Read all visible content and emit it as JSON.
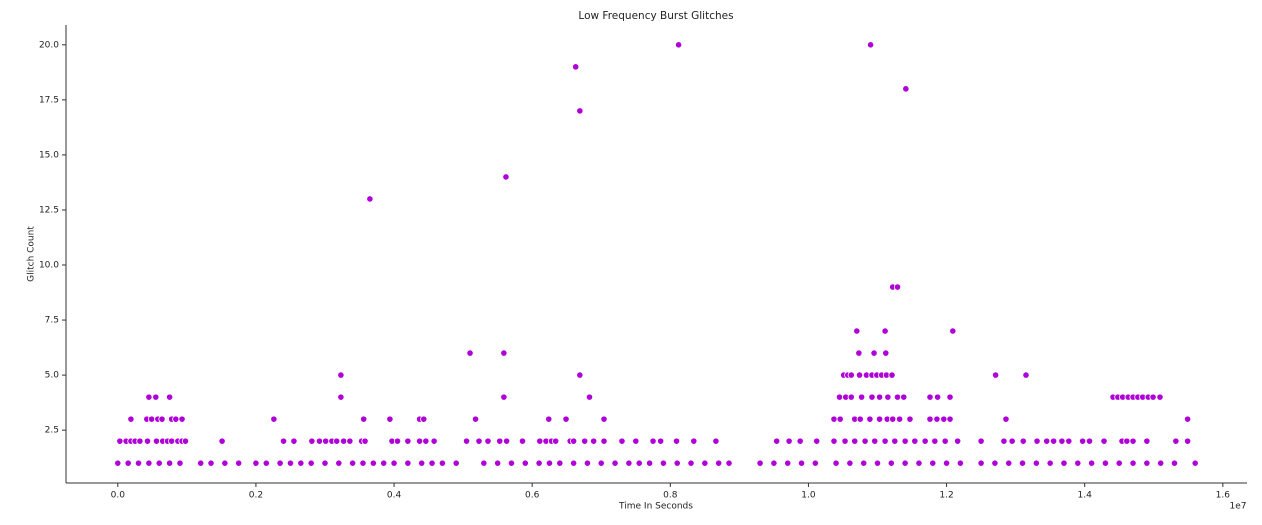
{
  "chart_data": {
    "type": "scatter",
    "title": "Low Frequency Burst Glitches",
    "xlabel": "Time In Seconds",
    "ylabel": "Glitch Count",
    "x_offset_label": "1e7",
    "color": "#b000d8",
    "grid": false,
    "xlim": [
      -0.075,
      1.635
    ],
    "ylim": [
      0.1,
      20.9
    ],
    "xticks": [
      {
        "value": 0,
        "label": "0.0"
      },
      0.2,
      0.4,
      0.6,
      0.8,
      {
        "value": 1,
        "label": "1.0"
      },
      1.2,
      1.4,
      1.6
    ],
    "yticks": [
      2.5,
      {
        "value": 5,
        "label": "5.0"
      },
      7.5,
      {
        "value": 10,
        "label": "10.0"
      },
      12.5,
      {
        "value": 15,
        "label": "15.0"
      },
      17.5,
      {
        "value": 20,
        "label": "20.0"
      }
    ],
    "x": [
      0,
      0.015,
      0.03,
      0.045,
      0.06,
      0.075,
      0.09,
      0.12,
      0.135,
      0.155,
      0.175,
      0.2,
      0.215,
      0.235,
      0.25,
      0.265,
      0.28,
      0.3,
      0.32,
      0.34,
      0.355,
      0.37,
      0.385,
      0.4,
      0.42,
      0.44,
      0.455,
      0.47,
      0.49,
      0.53,
      0.55,
      0.57,
      0.59,
      0.61,
      0.625,
      0.64,
      0.66,
      0.68,
      0.7,
      0.72,
      0.74,
      0.755,
      0.77,
      0.79,
      0.81,
      0.83,
      0.85,
      0.87,
      0.885,
      0.93,
      0.95,
      0.97,
      0.99,
      1.01,
      1.04,
      1.06,
      1.08,
      1.1,
      1.12,
      1.14,
      1.16,
      1.18,
      1.2,
      1.22,
      1.25,
      1.27,
      1.29,
      1.31,
      1.33,
      1.35,
      1.37,
      1.39,
      1.41,
      1.43,
      1.45,
      1.47,
      1.49,
      1.51,
      1.53,
      1.56,
      0.003,
      0.012,
      0.019,
      0.025,
      0.032,
      0.043,
      0.056,
      0.065,
      0.072,
      0.078,
      0.087,
      0.093,
      0.098,
      0.151,
      0.24,
      0.255,
      0.281,
      0.292,
      0.301,
      0.31,
      0.317,
      0.327,
      0.336,
      0.353,
      0.358,
      0.397,
      0.405,
      0.42,
      0.437,
      0.446,
      0.458,
      0.505,
      0.523,
      0.536,
      0.553,
      0.563,
      0.586,
      0.611,
      0.62,
      0.628,
      0.634,
      0.655,
      0.66,
      0.676,
      0.689,
      0.704,
      0.73,
      0.75,
      0.775,
      0.786,
      0.809,
      0.834,
      0.866,
      0.954,
      0.972,
      0.988,
      1.012,
      1.037,
      1.053,
      1.067,
      1.082,
      1.096,
      1.111,
      1.125,
      1.14,
      1.154,
      1.169,
      1.183,
      1.198,
      1.216,
      1.25,
      1.283,
      1.295,
      1.311,
      1.331,
      1.345,
      1.355,
      1.367,
      1.377,
      1.397,
      1.407,
      1.428,
      1.454,
      1.461,
      1.47,
      1.49,
      1.532,
      1.549,
      0.019,
      0.042,
      0.049,
      0.058,
      0.064,
      0.078,
      0.084,
      0.093,
      0.226,
      0.356,
      0.394,
      0.437,
      0.443,
      0.518,
      0.624,
      0.649,
      0.704,
      1.037,
      1.046,
      1.067,
      1.075,
      1.089,
      1.103,
      1.114,
      1.122,
      1.132,
      1.147,
      1.176,
      1.186,
      1.196,
      1.205,
      1.286,
      1.549,
      0.045,
      0.055,
      0.075,
      0.323,
      0.559,
      0.683,
      1.045,
      1.054,
      1.062,
      1.077,
      1.092,
      1.103,
      1.115,
      1.129,
      1.138,
      1.176,
      1.187,
      1.205,
      1.441,
      1.448,
      1.455,
      1.463,
      1.47,
      1.477,
      1.484,
      1.492,
      1.499,
      1.509,
      0.323,
      0.669,
      1.051,
      1.057,
      1.062,
      1.074,
      1.084,
      1.092,
      1.099,
      1.106,
      1.113,
      1.121,
      1.271,
      1.315,
      0.51,
      0.559,
      1.073,
      1.095,
      1.112,
      1.07,
      1.111,
      1.209,
      1.122,
      1.129,
      0.365,
      0.562,
      0.669,
      1.141,
      0.663,
      0.812,
      1.09
    ],
    "values": [
      1,
      1,
      1,
      1,
      1,
      1,
      1,
      1,
      1,
      1,
      1,
      1,
      1,
      1,
      1,
      1,
      1,
      1,
      1,
      1,
      1,
      1,
      1,
      1,
      1,
      1,
      1,
      1,
      1,
      1,
      1,
      1,
      1,
      1,
      1,
      1,
      1,
      1,
      1,
      1,
      1,
      1,
      1,
      1,
      1,
      1,
      1,
      1,
      1,
      1,
      1,
      1,
      1,
      1,
      1,
      1,
      1,
      1,
      1,
      1,
      1,
      1,
      1,
      1,
      1,
      1,
      1,
      1,
      1,
      1,
      1,
      1,
      1,
      1,
      1,
      1,
      1,
      1,
      1,
      1,
      2,
      2,
      2,
      2,
      2,
      2,
      2,
      2,
      2,
      2,
      2,
      2,
      2,
      2,
      2,
      2,
      2,
      2,
      2,
      2,
      2,
      2,
      2,
      2,
      2,
      2,
      2,
      2,
      2,
      2,
      2,
      2,
      2,
      2,
      2,
      2,
      2,
      2,
      2,
      2,
      2,
      2,
      2,
      2,
      2,
      2,
      2,
      2,
      2,
      2,
      2,
      2,
      2,
      2,
      2,
      2,
      2,
      2,
      2,
      2,
      2,
      2,
      2,
      2,
      2,
      2,
      2,
      2,
      2,
      2,
      2,
      2,
      2,
      2,
      2,
      2,
      2,
      2,
      2,
      2,
      2,
      2,
      2,
      2,
      2,
      2,
      2,
      2,
      3,
      3,
      3,
      3,
      3,
      3,
      3,
      3,
      3,
      3,
      3,
      3,
      3,
      3,
      3,
      3,
      3,
      3,
      3,
      3,
      3,
      3,
      3,
      3,
      3,
      3,
      3,
      3,
      3,
      3,
      3,
      3,
      3,
      4,
      4,
      4,
      4,
      4,
      4,
      4,
      4,
      4,
      4,
      4,
      4,
      4,
      4,
      4,
      4,
      4,
      4,
      4,
      4,
      4,
      4,
      4,
      4,
      4,
      4,
      4,
      4,
      5,
      5,
      5,
      5,
      5,
      5,
      5,
      5,
      5,
      5,
      5,
      5,
      5,
      5,
      6,
      6,
      6,
      6,
      6,
      7,
      7,
      7,
      9,
      9,
      13,
      14,
      17,
      18,
      19,
      20,
      20
    ]
  }
}
